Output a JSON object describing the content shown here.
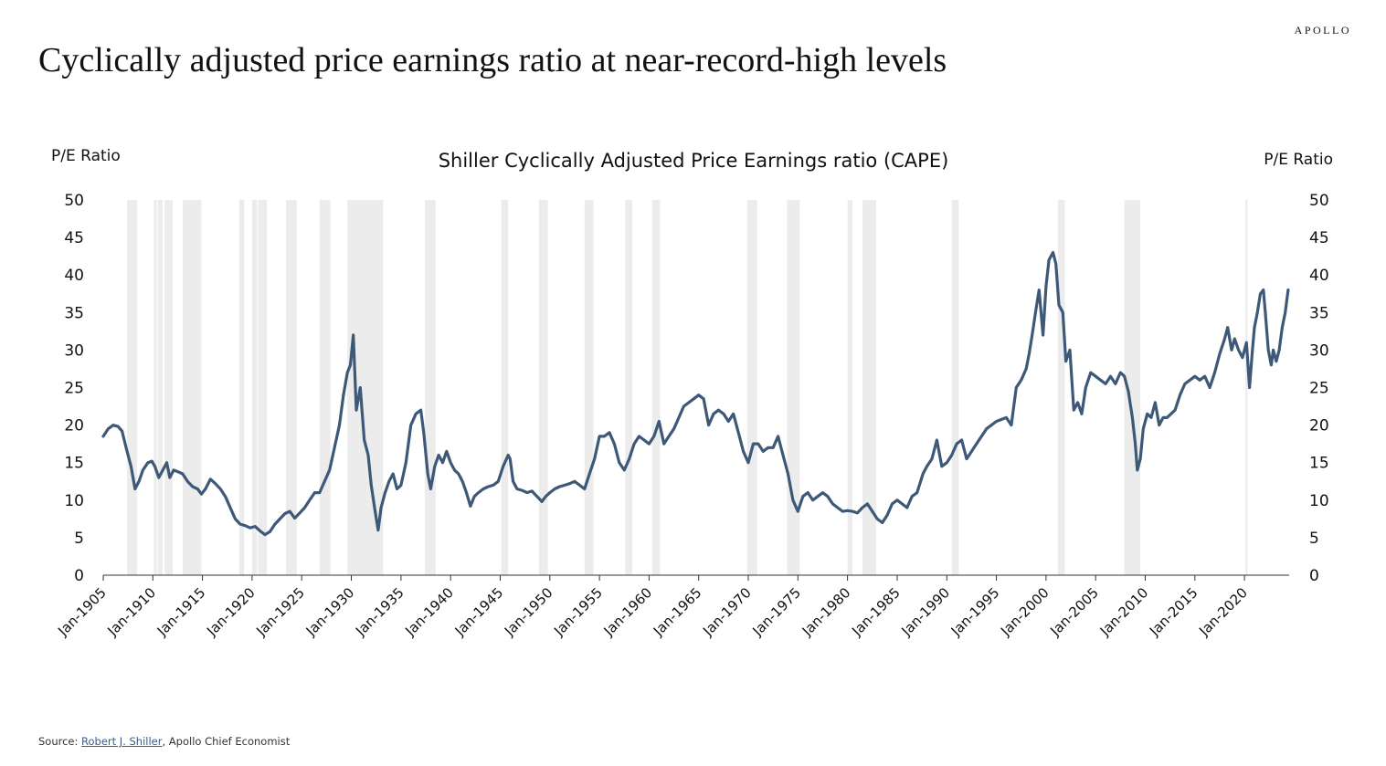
{
  "brand": "APOLLO",
  "title": "Cyclically adjusted price earnings ratio at near-record-high levels",
  "source": {
    "prefix": "Source: ",
    "link_text": "Robert J. Shiller",
    "suffix": ", Apollo Chief Economist"
  },
  "colors": {
    "line": "#3e5878",
    "recession": "#ececec",
    "axis": "#333333"
  },
  "chart_data": {
    "type": "line",
    "title": "Shiller Cyclically Adjusted Price Earnings ratio (CAPE)",
    "ylabel_left": "P/E Ratio",
    "ylabel_right": "P/E Ratio",
    "ylim": [
      0,
      50
    ],
    "yticks": [
      0,
      5,
      10,
      15,
      20,
      25,
      30,
      35,
      40,
      45,
      50
    ],
    "xlim": [
      1905.0,
      2024.5
    ],
    "xtick_labels": [
      "Jan-1905",
      "Jan-1910",
      "Jan-1915",
      "Jan-1920",
      "Jan-1925",
      "Jan-1930",
      "Jan-1935",
      "Jan-1940",
      "Jan-1945",
      "Jan-1950",
      "Jan-1955",
      "Jan-1960",
      "Jan-1965",
      "Jan-1970",
      "Jan-1975",
      "Jan-1980",
      "Jan-1985",
      "Jan-1990",
      "Jan-1995",
      "Jan-2000",
      "Jan-2005",
      "Jan-2010",
      "Jan-2015",
      "Jan-2020"
    ],
    "xtick_years": [
      1905,
      1910,
      1915,
      1920,
      1925,
      1930,
      1935,
      1940,
      1945,
      1950,
      1955,
      1960,
      1965,
      1970,
      1975,
      1980,
      1985,
      1990,
      1995,
      2000,
      2005,
      2010,
      2015,
      2020
    ],
    "grid": false,
    "legend": "none",
    "recessions": [
      [
        1907.4,
        1908.4
      ],
      [
        1910.1,
        1910.4
      ],
      [
        1910.5,
        1911.0
      ],
      [
        1911.2,
        1912.0
      ],
      [
        1913.0,
        1914.9
      ],
      [
        1918.7,
        1919.2
      ],
      [
        1920.0,
        1920.5
      ],
      [
        1920.6,
        1921.5
      ],
      [
        1923.4,
        1924.5
      ],
      [
        1926.8,
        1927.9
      ],
      [
        1929.6,
        1933.2
      ],
      [
        1937.4,
        1938.5
      ],
      [
        1945.1,
        1945.8
      ],
      [
        1948.9,
        1949.8
      ],
      [
        1953.5,
        1954.4
      ],
      [
        1957.6,
        1958.3
      ],
      [
        1960.3,
        1961.1
      ],
      [
        1969.9,
        1970.9
      ],
      [
        1973.9,
        1975.2
      ],
      [
        1980.0,
        1980.5
      ],
      [
        1981.5,
        1982.9
      ],
      [
        1990.5,
        1991.2
      ],
      [
        2001.2,
        2001.9
      ],
      [
        2007.9,
        2009.5
      ],
      [
        2020.1,
        2020.3
      ]
    ],
    "series": [
      {
        "x": [
          1905.0,
          1905.5,
          1906.0,
          1906.5,
          1906.9,
          1907.3,
          1907.8,
          1908.2,
          1908.6,
          1909.0,
          1909.5,
          1909.9,
          1910.2,
          1910.6,
          1911.0,
          1911.4,
          1911.7,
          1912.1,
          1912.5,
          1913.0,
          1913.5,
          1914.0,
          1914.5,
          1914.9,
          1915.3,
          1915.8,
          1916.3,
          1916.8,
          1917.3,
          1917.8,
          1918.3,
          1918.8,
          1919.3,
          1919.8,
          1920.3,
          1920.8,
          1921.3,
          1921.8,
          1922.3,
          1922.8,
          1923.3,
          1923.8,
          1924.3,
          1924.8,
          1925.3,
          1925.8,
          1926.3,
          1926.8,
          1927.3,
          1927.8,
          1928.3,
          1928.8,
          1929.2,
          1929.6,
          1929.9,
          1930.2,
          1930.5,
          1930.9,
          1931.3,
          1931.7,
          1932.0,
          1932.4,
          1932.7,
          1933.0,
          1933.4,
          1933.8,
          1934.2,
          1934.6,
          1935.0,
          1935.5,
          1936.0,
          1936.5,
          1937.0,
          1937.3,
          1937.7,
          1938.0,
          1938.4,
          1938.8,
          1939.2,
          1939.6,
          1940.0,
          1940.4,
          1940.8,
          1941.2,
          1941.6,
          1942.0,
          1942.4,
          1942.8,
          1943.3,
          1943.8,
          1944.3,
          1944.8,
          1945.3,
          1945.8,
          1946.0,
          1946.3,
          1946.7,
          1947.2,
          1947.7,
          1948.2,
          1948.7,
          1949.2,
          1949.6,
          1950.0,
          1950.5,
          1951.0,
          1951.5,
          1952.0,
          1952.5,
          1953.0,
          1953.5,
          1954.0,
          1954.5,
          1955.0,
          1955.5,
          1956.0,
          1956.5,
          1957.0,
          1957.5,
          1958.0,
          1958.5,
          1959.0,
          1959.5,
          1960.0,
          1960.5,
          1961.0,
          1961.5,
          1962.0,
          1962.5,
          1963.0,
          1963.5,
          1964.0,
          1964.5,
          1965.0,
          1965.5,
          1966.0,
          1966.5,
          1967.0,
          1967.5,
          1968.0,
          1968.5,
          1969.0,
          1969.5,
          1970.0,
          1970.5,
          1971.0,
          1971.5,
          1972.0,
          1972.5,
          1973.0,
          1973.5,
          1974.0,
          1974.5,
          1975.0,
          1975.5,
          1976.0,
          1976.5,
          1977.0,
          1977.5,
          1978.0,
          1978.5,
          1979.0,
          1979.5,
          1980.0,
          1980.5,
          1981.0,
          1981.5,
          1982.0,
          1982.5,
          1983.0,
          1983.5,
          1984.0,
          1984.5,
          1985.0,
          1985.5,
          1986.0,
          1986.5,
          1987.0,
          1987.6,
          1988.0,
          1988.5,
          1989.0,
          1989.5,
          1990.0,
          1990.5,
          1991.0,
          1991.5,
          1992.0,
          1993.0,
          1994.0,
          1995.0,
          1996.0,
          1996.5,
          1997.0,
          1997.5,
          1998.0,
          1998.3,
          1998.6,
          1999.0,
          1999.3,
          1999.7,
          2000.0,
          2000.3,
          2000.7,
          2001.0,
          2001.3,
          2001.7,
          2002.0,
          2002.4,
          2002.8,
          2003.2,
          2003.6,
          2004.0,
          2004.5,
          2005.0,
          2005.5,
          2006.0,
          2006.5,
          2007.0,
          2007.5,
          2007.9,
          2008.3,
          2008.7,
          2009.0,
          2009.2,
          2009.5,
          2009.8,
          2010.2,
          2010.6,
          2011.0,
          2011.4,
          2011.8,
          2012.2,
          2012.6,
          2013.0,
          2013.5,
          2014.0,
          2014.5,
          2015.0,
          2015.5,
          2016.0,
          2016.5,
          2017.0,
          2017.5,
          2018.0,
          2018.3,
          2018.7,
          2019.0,
          2019.4,
          2019.8,
          2020.0,
          2020.2,
          2020.5,
          2020.8,
          2021.0,
          2021.3,
          2021.6,
          2021.9,
          2022.1,
          2022.4,
          2022.7,
          2022.9,
          2023.2,
          2023.5,
          2023.8,
          2024.1,
          2024.4
        ],
        "values": [
          18.5,
          19.5,
          20.0,
          19.8,
          19.2,
          17.0,
          14.5,
          11.5,
          12.5,
          14.0,
          15.0,
          15.2,
          14.5,
          13.0,
          14.0,
          15.0,
          13.0,
          14.0,
          13.8,
          13.5,
          12.5,
          11.8,
          11.5,
          10.8,
          11.5,
          12.8,
          12.2,
          11.5,
          10.5,
          9.0,
          7.5,
          6.8,
          6.6,
          6.3,
          6.5,
          5.9,
          5.4,
          5.8,
          6.8,
          7.5,
          8.2,
          8.5,
          7.6,
          8.3,
          9.0,
          10.0,
          11.0,
          11.0,
          12.5,
          14.0,
          17.0,
          20.0,
          24.0,
          27.0,
          28.0,
          32.0,
          22.0,
          25.0,
          18.0,
          16.0,
          12.0,
          8.5,
          6.0,
          9.0,
          11.0,
          12.5,
          13.5,
          11.5,
          12.0,
          15.0,
          20.0,
          21.5,
          22.0,
          19.0,
          13.5,
          11.5,
          14.5,
          16.0,
          15.0,
          16.5,
          15.0,
          14.0,
          13.5,
          12.5,
          11.0,
          9.2,
          10.5,
          11.0,
          11.5,
          11.8,
          12.0,
          12.5,
          14.5,
          16.0,
          15.5,
          12.5,
          11.5,
          11.3,
          11.0,
          11.2,
          10.5,
          9.8,
          10.5,
          11.0,
          11.5,
          11.8,
          12.0,
          12.2,
          12.5,
          12.0,
          11.5,
          13.5,
          15.5,
          18.5,
          18.5,
          19.0,
          17.5,
          15.0,
          14.0,
          15.5,
          17.5,
          18.5,
          18.0,
          17.5,
          18.5,
          20.5,
          17.5,
          18.5,
          19.5,
          21.0,
          22.5,
          23.0,
          23.5,
          24.0,
          23.5,
          20.0,
          21.5,
          22.0,
          21.5,
          20.5,
          21.5,
          19.0,
          16.5,
          15.0,
          17.5,
          17.5,
          16.5,
          17.0,
          17.0,
          18.5,
          16.0,
          13.5,
          10.0,
          8.5,
          10.5,
          11.0,
          10.0,
          10.5,
          11.0,
          10.5,
          9.5,
          9.0,
          8.5,
          8.6,
          8.5,
          8.3,
          9.0,
          9.5,
          8.5,
          7.5,
          7.0,
          8.0,
          9.5,
          10.0,
          9.5,
          9.0,
          10.5,
          11.0,
          13.5,
          14.5,
          15.5,
          18.0,
          14.5,
          15.0,
          16.0,
          17.5,
          18.0,
          15.5,
          17.5,
          19.5,
          20.5,
          21.0,
          20.0,
          25.0,
          26.0,
          27.5,
          29.5,
          32.0,
          35.5,
          38.0,
          32.0,
          38.5,
          42.0,
          43.0,
          41.5,
          36.0,
          35.0,
          28.5,
          30.0,
          22.0,
          23.0,
          21.5,
          25.0,
          27.0,
          26.5,
          26.0,
          25.5,
          26.5,
          25.5,
          27.0,
          26.5,
          24.5,
          21.0,
          17.5,
          14.0,
          15.5,
          19.5,
          21.5,
          21.0,
          23.0,
          20.0,
          21.0,
          21.0,
          21.5,
          22.0,
          24.0,
          25.5,
          26.0,
          26.5,
          26.0,
          26.5,
          25.0,
          27.0,
          29.5,
          31.5,
          33.0,
          30.0,
          31.5,
          30.0,
          29.0,
          30.0,
          31.0,
          25.0,
          30.0,
          33.0,
          35.0,
          37.5,
          38.0,
          35.0,
          30.0,
          28.0,
          30.0,
          28.5,
          30.0,
          33.0,
          35.0,
          38.0
        ]
      }
    ]
  }
}
